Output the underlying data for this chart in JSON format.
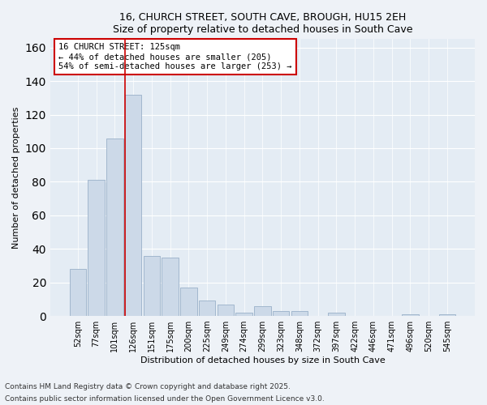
{
  "title1": "16, CHURCH STREET, SOUTH CAVE, BROUGH, HU15 2EH",
  "title2": "Size of property relative to detached houses in South Cave",
  "xlabel": "Distribution of detached houses by size in South Cave",
  "ylabel": "Number of detached properties",
  "categories": [
    "52sqm",
    "77sqm",
    "101sqm",
    "126sqm",
    "151sqm",
    "175sqm",
    "200sqm",
    "225sqm",
    "249sqm",
    "274sqm",
    "299sqm",
    "323sqm",
    "348sqm",
    "372sqm",
    "397sqm",
    "422sqm",
    "446sqm",
    "471sqm",
    "496sqm",
    "520sqm",
    "545sqm"
  ],
  "values": [
    28,
    81,
    106,
    132,
    36,
    35,
    17,
    9,
    7,
    2,
    6,
    3,
    3,
    0,
    2,
    0,
    0,
    0,
    1,
    0,
    1
  ],
  "bar_color": "#ccd9e8",
  "bar_edge_color": "#9ab0c8",
  "property_line_index": 3,
  "property_line_color": "#cc0000",
  "annotation_text": "16 CHURCH STREET: 125sqm\n← 44% of detached houses are smaller (205)\n54% of semi-detached houses are larger (253) →",
  "ylim": [
    0,
    165
  ],
  "yticks": [
    0,
    20,
    40,
    60,
    80,
    100,
    120,
    140,
    160
  ],
  "footnote1": "Contains HM Land Registry data © Crown copyright and database right 2025.",
  "footnote2": "Contains public sector information licensed under the Open Government Licence v3.0.",
  "background_color": "#eef2f7",
  "plot_bg_color": "#e4ecf4",
  "grid_color": "#ffffff",
  "title_fontsize": 9,
  "axis_label_fontsize": 8,
  "tick_fontsize": 7,
  "footnote_fontsize": 6.5
}
